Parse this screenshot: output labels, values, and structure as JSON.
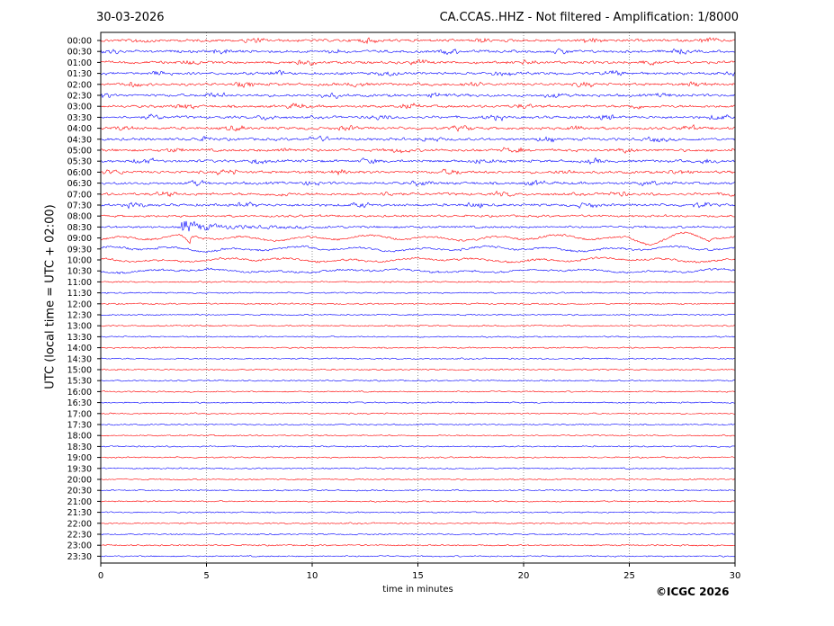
{
  "header": {
    "date": "30-03-2026",
    "title": "CA.CCAS..HHZ - Not filtered - Amplification: 1/8000"
  },
  "footer": {
    "copyright": "©ICGC 2026"
  },
  "chart_data": {
    "type": "line",
    "title": "CA.CCAS..HHZ - Not filtered - Amplification: 1/8000",
    "xlabel": "time in minutes",
    "ylabel": "UTC (local time = UTC + 02:00)",
    "xlim": [
      0,
      30
    ],
    "xticks": [
      0,
      5,
      10,
      15,
      20,
      25,
      30
    ],
    "yticks": [
      "00:00",
      "00:30",
      "01:00",
      "01:30",
      "02:00",
      "02:30",
      "03:00",
      "03:30",
      "04:00",
      "04:30",
      "05:00",
      "05:30",
      "06:00",
      "06:30",
      "07:00",
      "07:30",
      "08:00",
      "08:30",
      "09:00",
      "09:30",
      "10:00",
      "10:30",
      "11:00",
      "11:30",
      "12:00",
      "12:30",
      "13:00",
      "13:30",
      "14:00",
      "14:30",
      "15:00",
      "15:30",
      "16:00",
      "16:30",
      "17:00",
      "17:30",
      "18:00",
      "18:30",
      "19:00",
      "19:30",
      "20:00",
      "20:30",
      "21:00",
      "21:30",
      "22:00",
      "22:30",
      "23:00",
      "23:30"
    ],
    "grid": "vertical dotted at x ticks",
    "series_colors": [
      "#ff0000",
      "#0000ff"
    ],
    "event": {
      "row": "08:30",
      "onset_minute": 3.8
    }
  }
}
